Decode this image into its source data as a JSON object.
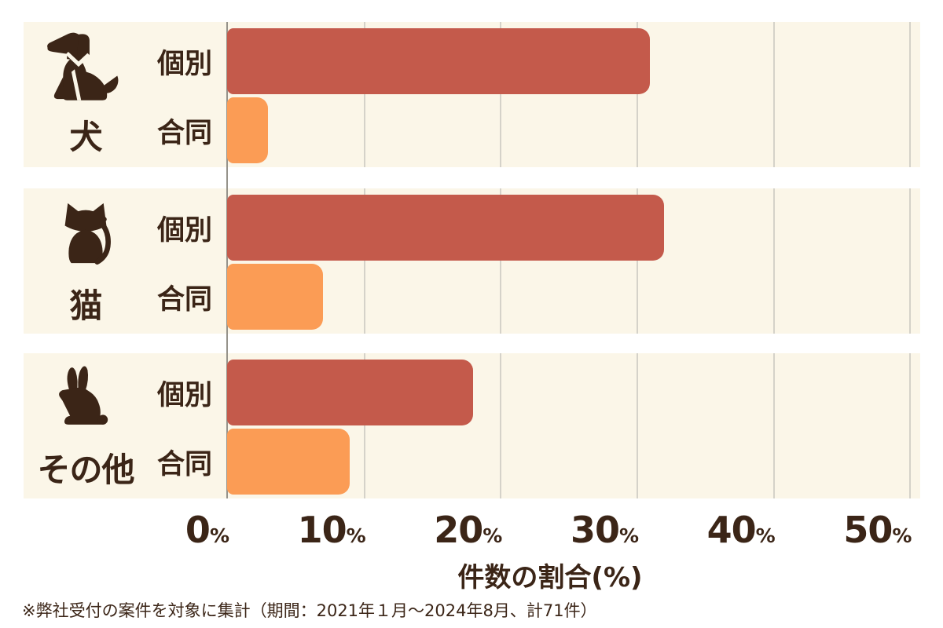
{
  "chart_data": {
    "type": "bar",
    "orientation": "horizontal",
    "title": "",
    "xlabel": "件数の割合(%)",
    "unit": "%",
    "x_axis": {
      "tick_values": [
        0,
        10,
        20,
        30,
        40,
        50
      ],
      "min": 0,
      "max": 50,
      "grid": true
    },
    "groups": [
      {
        "label": "犬",
        "icon": "dog-icon",
        "series": [
          {
            "name": "個別",
            "value": 31
          },
          {
            "name": "合同",
            "value": 3
          }
        ]
      },
      {
        "label": "猫",
        "icon": "cat-icon",
        "series": [
          {
            "name": "個別",
            "value": 32
          },
          {
            "name": "合同",
            "value": 7
          }
        ]
      },
      {
        "label": "その他",
        "icon": "rabbit-icon",
        "series": [
          {
            "name": "個別",
            "value": 18
          },
          {
            "name": "合同",
            "value": 9
          }
        ]
      }
    ],
    "series_colors": {
      "個別": "#c45a4b",
      "合同": "#fb9c55"
    },
    "band_background": "#fbf6e8",
    "text_color": "#3b2517",
    "footnote": "※弊社受付の案件を対象に集計（期間：2021年１月～2024年8月、計71件）"
  }
}
